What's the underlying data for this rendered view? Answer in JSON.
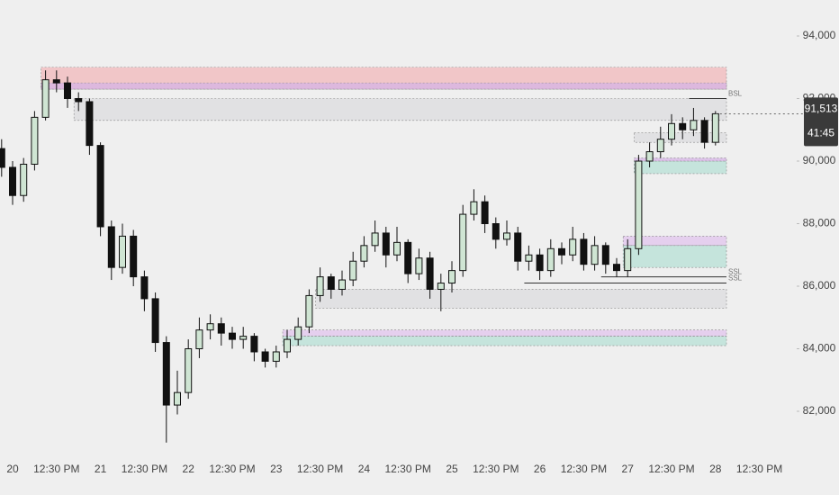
{
  "chart_data": {
    "type": "candlestick",
    "categories": [
      null,
      "20",
      null,
      null,
      null,
      "12:30 PM",
      null,
      null,
      null,
      "21",
      null,
      null,
      null,
      "12:30 PM",
      null,
      null,
      null,
      "22",
      null,
      null,
      null,
      "12:30 PM",
      null,
      null,
      null,
      "23",
      null,
      null,
      null,
      "12:30 PM",
      null,
      null,
      null,
      "24",
      null,
      null,
      null,
      "12:30 PM",
      null,
      null,
      null,
      "25",
      null,
      null,
      null,
      "12:30 PM",
      null,
      null,
      null,
      "26",
      null,
      null,
      null,
      "12:30 PM",
      null,
      null,
      null,
      "27",
      null,
      null,
      null,
      "12:30 PM",
      null,
      null,
      null,
      "28",
      null,
      null,
      null,
      "12:30 PM"
    ],
    "open": [
      90400,
      89800,
      88900,
      89900,
      91400,
      92600,
      92500,
      92000,
      91900,
      90500,
      87900,
      86600,
      87600,
      86300,
      85600,
      84200,
      82200,
      82600,
      84000,
      84600,
      84800,
      84500,
      84300,
      84400,
      83900,
      83600,
      83900,
      84300,
      84700,
      85700,
      86300,
      85900,
      86200,
      86800,
      87300,
      87700,
      87000,
      87400,
      86400,
      86900,
      85900,
      86100,
      86500,
      88300,
      88700,
      88000,
      87500,
      87700,
      86800,
      87000,
      86500,
      87200,
      87000,
      87500,
      86700,
      87300,
      86700,
      86500,
      87200,
      90000,
      90300,
      90700,
      91200,
      91000,
      91300,
      90600,
      null,
      null,
      null,
      null
    ],
    "high": [
      90700,
      90000,
      90100,
      91600,
      92900,
      92900,
      92700,
      92200,
      92000,
      90600,
      88100,
      88000,
      87800,
      86500,
      85800,
      84400,
      83300,
      84300,
      85000,
      85100,
      85000,
      84700,
      84700,
      84500,
      84000,
      84100,
      84600,
      85000,
      85900,
      86600,
      86400,
      86500,
      87100,
      87600,
      88100,
      87900,
      87900,
      87500,
      87200,
      87100,
      86400,
      86800,
      88600,
      89100,
      88900,
      88200,
      88100,
      87900,
      87300,
      87200,
      87500,
      87400,
      87900,
      87700,
      87600,
      87400,
      86900,
      87500,
      90200,
      90600,
      91100,
      91500,
      91400,
      91700,
      91400,
      91600,
      null,
      null,
      null,
      null
    ],
    "low": [
      89500,
      88600,
      88700,
      89700,
      91300,
      92200,
      91700,
      91600,
      90200,
      87600,
      86200,
      86400,
      86000,
      85200,
      83900,
      81000,
      81900,
      82400,
      83700,
      84300,
      84100,
      84000,
      84000,
      83600,
      83400,
      83400,
      83700,
      84100,
      84500,
      85500,
      85600,
      85700,
      86000,
      86600,
      87100,
      86600,
      86800,
      86100,
      86200,
      85600,
      85200,
      85800,
      86300,
      88100,
      87700,
      87200,
      87300,
      86500,
      86500,
      86200,
      86300,
      86700,
      86800,
      86500,
      86500,
      86400,
      86300,
      86300,
      87000,
      89800,
      90100,
      90500,
      90700,
      90800,
      90400,
      90500,
      null,
      null,
      null,
      null
    ],
    "close": [
      89800,
      88900,
      89900,
      91400,
      92600,
      92500,
      92000,
      91900,
      90500,
      87900,
      86600,
      87600,
      86300,
      85600,
      84200,
      82200,
      82600,
      84000,
      84600,
      84800,
      84500,
      84300,
      84400,
      83900,
      83600,
      83900,
      84300,
      84700,
      85700,
      86300,
      85900,
      86200,
      86800,
      87300,
      87700,
      87000,
      87400,
      86400,
      86900,
      85900,
      86100,
      86500,
      88300,
      88700,
      88000,
      87500,
      87700,
      86800,
      87000,
      86500,
      87200,
      87000,
      87500,
      86700,
      87300,
      86700,
      86500,
      87200,
      90000,
      90300,
      90700,
      91200,
      91000,
      91300,
      90600,
      91513,
      null,
      null,
      null,
      null
    ],
    "up_color": "#cfe5d3",
    "down_color": "#111111",
    "ylim": [
      80245,
      95151
    ],
    "yticks": [
      {
        "value": 82000,
        "label": "82,000"
      },
      {
        "value": 84000,
        "label": "84,000"
      },
      {
        "value": 86000,
        "label": "86,000"
      },
      {
        "value": 88000,
        "label": "88,000"
      },
      {
        "value": 90000,
        "label": "90,000"
      },
      {
        "value": 92000,
        "label": "92,000"
      },
      {
        "value": 94000,
        "label": "94,000"
      }
    ],
    "zones": [
      {
        "from": 4,
        "to": 66,
        "low": 92300,
        "high": 93000,
        "color": "#f2b8bb"
      },
      {
        "from": 4,
        "to": 66,
        "low": 92300,
        "high": 92500,
        "color": "#d6b3e6"
      },
      {
        "from": 7,
        "to": 66,
        "low": 91300,
        "high": 92000,
        "color": "#dcdcdf"
      },
      {
        "from": 58,
        "to": 66,
        "low": 90600,
        "high": 90900,
        "color": "#dcdcdf"
      },
      {
        "from": 58,
        "to": 66,
        "low": 89600,
        "high": 90000,
        "color": "#b7e0d6"
      },
      {
        "from": 58,
        "to": 66,
        "low": 90000,
        "high": 90100,
        "color": "#d6b3e6"
      },
      {
        "from": 57,
        "to": 66,
        "low": 87300,
        "high": 87600,
        "color": "#e2c4ee"
      },
      {
        "from": 57,
        "to": 66,
        "low": 86600,
        "high": 87300,
        "color": "#b7e0d6"
      },
      {
        "from": 29,
        "to": 66,
        "low": 85300,
        "high": 85900,
        "color": "#dcdcdf"
      },
      {
        "from": 26,
        "to": 66,
        "low": 84400,
        "high": 84600,
        "color": "#e2c4ee"
      },
      {
        "from": 26,
        "to": 66,
        "low": 84100,
        "high": 84400,
        "color": "#b7e0d6"
      }
    ],
    "levels": [
      {
        "from": 63,
        "to": 66,
        "value": 92000,
        "label": "BSL"
      },
      {
        "from": 48,
        "to": 66,
        "value": 86100,
        "label": "SSL"
      },
      {
        "from": 55,
        "to": 66,
        "value": 86300,
        "label": "SSL"
      }
    ],
    "last_price": {
      "value": 91513,
      "label": "91,513",
      "countdown": "41:45"
    }
  }
}
